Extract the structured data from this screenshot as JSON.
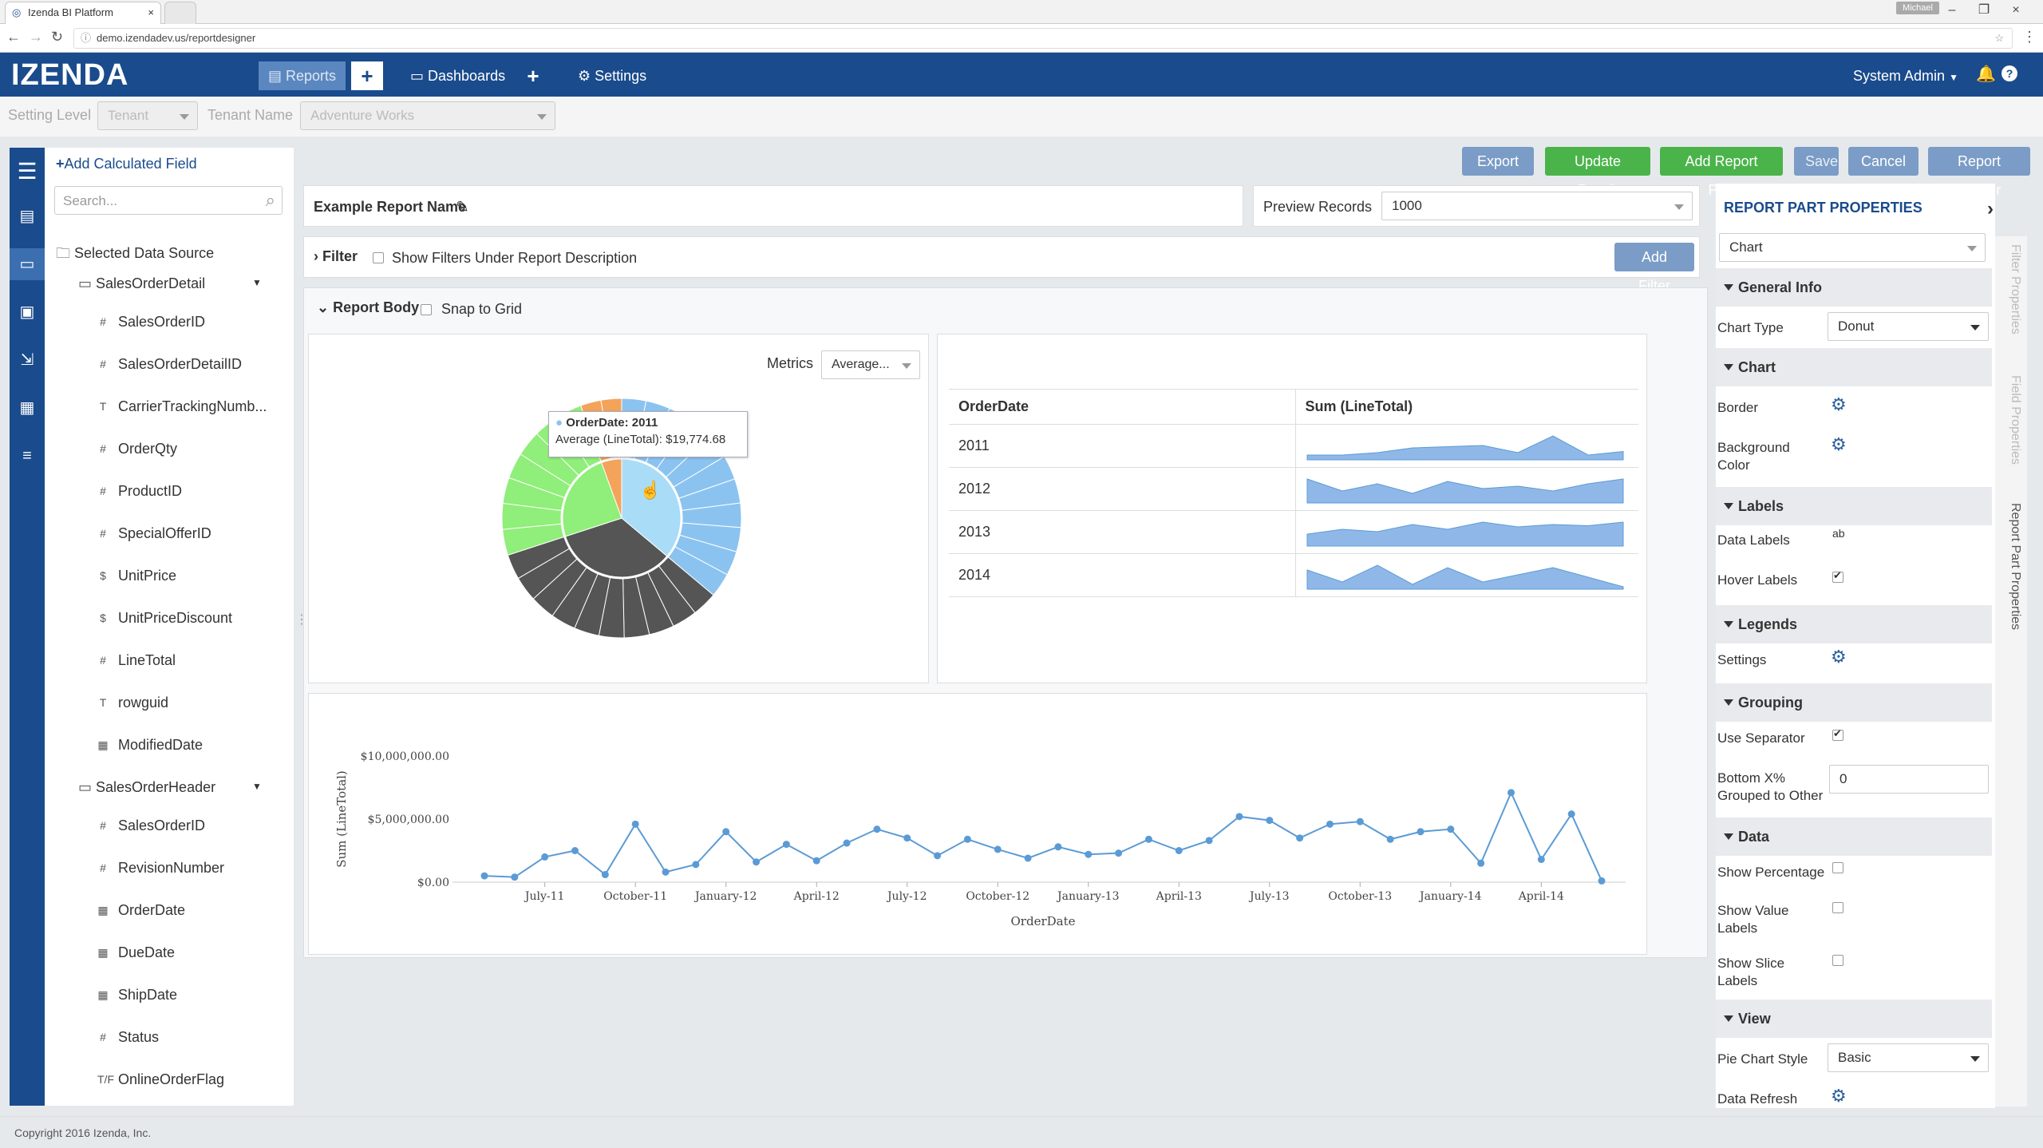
{
  "browser": {
    "tab_title": "Izenda BI Platform",
    "url": "demo.izendadev.us/reportdesigner",
    "user_badge": "Michael"
  },
  "topnav": {
    "logo": "IZENDA",
    "reports_label": "Reports",
    "dashboards_label": "Dashboards",
    "settings_label": "Settings",
    "user_label": "System Admin"
  },
  "settingbar": {
    "setting_level_label": "Setting Level",
    "setting_level_value": "Tenant",
    "tenant_name_label": "Tenant Name",
    "tenant_name_value": "Adventure Works"
  },
  "datasource": {
    "add_calculated_field": "Add Calculated Field",
    "search_placeholder": "Search...",
    "root_label": "Selected Data Source",
    "tables": [
      {
        "name": "SalesOrderDetail",
        "fields": [
          {
            "type": "#",
            "name": "SalesOrderID"
          },
          {
            "type": "#",
            "name": "SalesOrderDetailID"
          },
          {
            "type": "T",
            "name": "CarrierTrackingNumb..."
          },
          {
            "type": "#",
            "name": "OrderQty"
          },
          {
            "type": "#",
            "name": "ProductID"
          },
          {
            "type": "#",
            "name": "SpecialOfferID"
          },
          {
            "type": "$",
            "name": "UnitPrice"
          },
          {
            "type": "$",
            "name": "UnitPriceDiscount"
          },
          {
            "type": "#",
            "name": "LineTotal"
          },
          {
            "type": "T",
            "name": "rowguid"
          },
          {
            "type": "▦",
            "name": "ModifiedDate"
          }
        ]
      },
      {
        "name": "SalesOrderHeader",
        "fields": [
          {
            "type": "#",
            "name": "SalesOrderID"
          },
          {
            "type": "#",
            "name": "RevisionNumber"
          },
          {
            "type": "▦",
            "name": "OrderDate"
          },
          {
            "type": "▦",
            "name": "DueDate"
          },
          {
            "type": "▦",
            "name": "ShipDate"
          },
          {
            "type": "#",
            "name": "Status"
          },
          {
            "type": "T/F",
            "name": "OnlineOrderFlag"
          }
        ]
      }
    ]
  },
  "toolbar": {
    "export": "Export",
    "update_result": "Update Result",
    "add_report_part": "Add Report Part",
    "save": "Save",
    "cancel": "Cancel",
    "report_viewer": "Report Viewer"
  },
  "report": {
    "name": "Example Report Name",
    "preview_records_label": "Preview Records",
    "preview_records_value": "1000",
    "filter_label": "Filter",
    "show_filters_label": "Show Filters Under Report Description",
    "add_filter": "Add Filter",
    "report_body_label": "Report Body",
    "snap_to_grid_label": "Snap to Grid",
    "metrics_label": "Metrics",
    "metrics_value": "Average...",
    "tooltip_title": "OrderDate: 2011",
    "tooltip_value": "Average (LineTotal): $19,774.68"
  },
  "sparkline_table": {
    "headers": [
      "OrderDate",
      "Sum (LineTotal)"
    ],
    "rows": [
      "2011",
      "2012",
      "2013",
      "2014"
    ]
  },
  "chart_data": {
    "type": "line",
    "xlabel": "OrderDate",
    "ylabel": "Sum (LineTotal)",
    "yticks": [
      "$10,000,000.00",
      "$5,000,000.00",
      "$0.00"
    ],
    "ylim": [
      0,
      10000000
    ],
    "xticks": [
      "July-11",
      "October-11",
      "January-12",
      "April-12",
      "July-12",
      "October-12",
      "January-13",
      "April-13",
      "July-13",
      "October-13",
      "January-14",
      "April-14"
    ],
    "x": [
      "2011-05",
      "2011-06",
      "2011-07",
      "2011-08",
      "2011-09",
      "2011-10",
      "2011-11",
      "2011-12",
      "2012-01",
      "2012-02",
      "2012-03",
      "2012-04",
      "2012-05",
      "2012-06",
      "2012-07",
      "2012-08",
      "2012-09",
      "2012-10",
      "2012-11",
      "2012-12",
      "2013-01",
      "2013-02",
      "2013-03",
      "2013-04",
      "2013-05",
      "2013-06",
      "2013-07",
      "2013-08",
      "2013-09",
      "2013-10",
      "2013-11",
      "2013-12",
      "2014-01",
      "2014-02",
      "2014-03",
      "2014-04",
      "2014-05",
      "2014-06"
    ],
    "series": [
      {
        "values": [
          500000,
          400000,
          2000000,
          2500000,
          600000,
          4600000,
          800000,
          1400000,
          4000000,
          1600000,
          3000000,
          1700000,
          3100000,
          4200000,
          3500000,
          2100000,
          3400000,
          2600000,
          1900000,
          2800000,
          2200000,
          2300000,
          3400000,
          2500000,
          3300000,
          5200000,
          4900000,
          3500000,
          4600000,
          4800000,
          3400000,
          4000000,
          4200000,
          1500000,
          7100000,
          1800000,
          5400000,
          100000
        ]
      }
    ]
  },
  "properties": {
    "title": "REPORT PART PROPERTIES",
    "part_type": "Chart",
    "general_info": "General Info",
    "chart_type_label": "Chart Type",
    "chart_type_value": "Donut",
    "chart": "Chart",
    "border": "Border",
    "background_color": "Background Color",
    "labels": "Labels",
    "data_labels": "Data Labels",
    "hover_labels": "Hover Labels",
    "legends": "Legends",
    "settings": "Settings",
    "grouping": "Grouping",
    "use_separator": "Use Separator",
    "bottom_x": "Bottom X% Grouped to Other",
    "bottom_x_value": "0",
    "data": "Data",
    "show_percentage": "Show Percentage",
    "show_value_labels": "Show Value Labels",
    "show_slice_labels": "Show Slice Labels",
    "view": "View",
    "pie_chart_style_label": "Pie Chart Style",
    "pie_chart_style_value": "Basic",
    "data_refresh": "Data Refresh",
    "vtab_filter": "Filter Properties",
    "vtab_field": "Field Properties",
    "vtab_report": "Report Part Properties"
  },
  "footer": {
    "copyright": "Copyright 2016 Izenda, Inc."
  },
  "colors": {
    "nav": "#1a4b8c",
    "green": "#4ab44a",
    "blue_btn": "#7a9cc6",
    "series": "#5b9bd5"
  }
}
